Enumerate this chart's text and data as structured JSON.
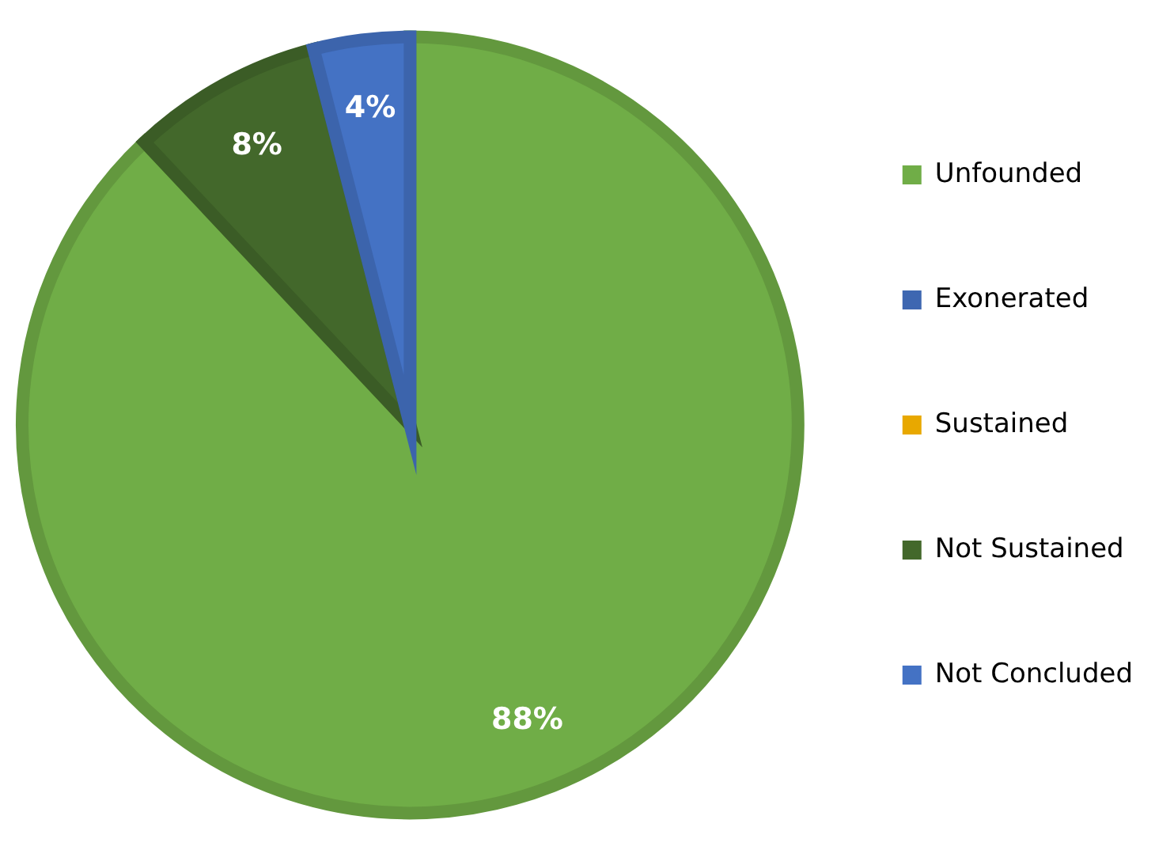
{
  "chart_data": {
    "type": "pie",
    "categories": [
      "Unfounded",
      "Exonerated",
      "Sustained",
      "Not Sustained",
      "Not Concluded"
    ],
    "values": [
      88,
      0,
      0,
      8,
      4
    ],
    "colors": [
      "#70ad47",
      "#3e67b1",
      "#e8a800",
      "#43682b",
      "#4472c4"
    ],
    "value_labels": [
      "88%",
      null,
      null,
      "8%",
      "4%"
    ],
    "legend": "right"
  }
}
